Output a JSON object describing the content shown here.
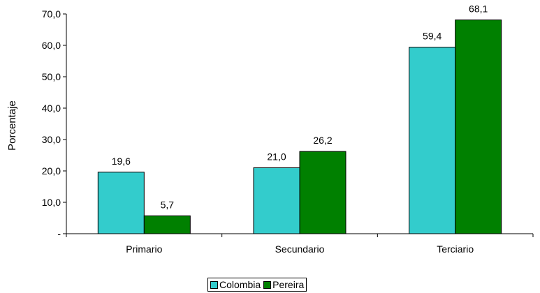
{
  "chart_data": {
    "type": "bar",
    "categories": [
      "Primario",
      "Secundario",
      "Terciario"
    ],
    "series": [
      {
        "name": "Colombia",
        "values": [
          19.6,
          21.0,
          59.4
        ],
        "color": "#33CCCC"
      },
      {
        "name": "Pereira",
        "values": [
          5.7,
          26.2,
          68.1
        ],
        "color": "#008000"
      }
    ],
    "data_labels": [
      [
        "19,6",
        "21,0",
        "59,4"
      ],
      [
        "5,7",
        "26,2",
        "68,1"
      ]
    ],
    "title": "",
    "xlabel": "",
    "ylabel": "Porcentaje",
    "ylim": [
      0,
      70
    ],
    "yticks": [
      0,
      10,
      20,
      30,
      40,
      50,
      60,
      70
    ],
    "ytick_labels": [
      "-",
      "10,0",
      "20,0",
      "30,0",
      "40,0",
      "50,0",
      "60,0",
      "70,0"
    ],
    "grid": false,
    "legend_position": "bottom-center"
  }
}
